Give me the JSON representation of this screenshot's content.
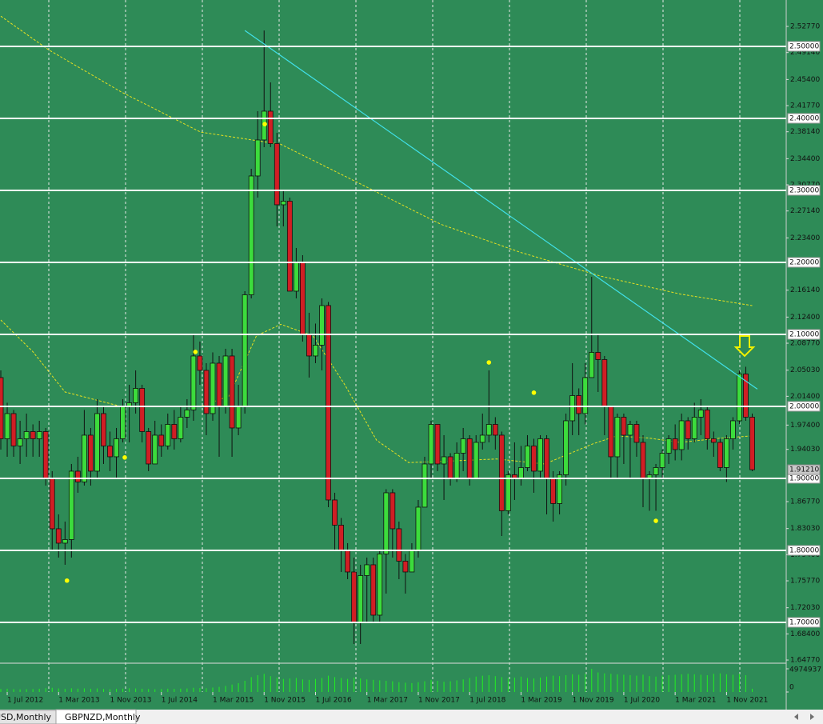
{
  "chart_data": {
    "type": "candlestick",
    "colors": {
      "background": "#2e8b57",
      "bull": "#3cdc3c",
      "bear": "#d01e24",
      "wick": "#101010",
      "level": "#ffffff",
      "trendline": "#40e0e8",
      "ma": "#e8e020",
      "marker": "#ffff00",
      "volume": "#22ee22"
    },
    "categories": [
      null,
      "1 Jul 2012",
      null,
      null,
      null,
      null,
      null,
      null,
      null,
      "1 Mar 2013",
      null,
      null,
      null,
      null,
      null,
      null,
      null,
      "1 Nov 2013",
      null,
      null,
      null,
      null,
      null,
      null,
      null,
      "1 Jul 2014",
      null,
      null,
      null,
      null,
      null,
      null,
      null,
      "1 Mar 2015",
      null,
      null,
      null,
      null,
      null,
      null,
      null,
      "1 Nov 2015",
      null,
      null,
      null,
      null,
      null,
      null,
      null,
      "1 Jul 2016",
      null,
      null,
      null,
      null,
      null,
      null,
      null,
      "1 Mar 2017",
      null,
      null,
      null,
      null,
      null,
      null,
      null,
      "1 Nov 2017",
      null,
      null,
      null,
      null,
      null,
      null,
      null,
      "1 Jul 2018",
      null,
      null,
      null,
      null,
      null,
      null,
      null,
      "1 Mar 2019",
      null,
      null,
      null,
      null,
      null,
      null,
      null,
      "1 Nov 2019",
      null,
      null,
      null,
      null,
      null,
      null,
      null,
      "1 Jul 2020",
      null,
      null,
      null,
      null,
      null,
      null,
      null,
      "1 Mar 2021",
      null,
      null,
      null,
      null,
      null,
      null,
      null,
      "1 Nov 2021",
      null,
      null,
      null,
      null
    ],
    "ohlc": [
      [
        2.04,
        2.05,
        1.94,
        1.955
      ],
      [
        1.955,
        2.005,
        1.93,
        1.99
      ],
      [
        1.99,
        1.995,
        1.93,
        1.945
      ],
      [
        1.945,
        1.98,
        1.92,
        1.955
      ],
      [
        1.955,
        1.99,
        1.93,
        1.965
      ],
      [
        1.965,
        1.975,
        1.93,
        1.955
      ],
      [
        1.955,
        1.98,
        1.93,
        1.965
      ],
      [
        1.965,
        1.97,
        1.89,
        1.9
      ],
      [
        1.9,
        1.91,
        1.8,
        1.83
      ],
      [
        1.83,
        1.85,
        1.79,
        1.81
      ],
      [
        1.81,
        1.84,
        1.78,
        1.815
      ],
      [
        1.815,
        1.92,
        1.79,
        1.91
      ],
      [
        1.91,
        1.93,
        1.88,
        1.895
      ],
      [
        1.895,
        1.995,
        1.89,
        1.96
      ],
      [
        1.96,
        1.97,
        1.89,
        1.91
      ],
      [
        1.91,
        2.01,
        1.9,
        1.99
      ],
      [
        1.99,
        2.0,
        1.92,
        1.945
      ],
      [
        1.945,
        1.965,
        1.91,
        1.93
      ],
      [
        1.93,
        1.97,
        1.9,
        1.955
      ],
      [
        1.955,
        2.01,
        1.95,
        2.0
      ],
      [
        2.0,
        2.03,
        1.95,
        2.005
      ],
      [
        2.005,
        2.05,
        1.99,
        2.025
      ],
      [
        2.025,
        2.03,
        1.95,
        1.965
      ],
      [
        1.965,
        1.97,
        1.91,
        1.92
      ],
      [
        1.92,
        1.98,
        1.92,
        1.96
      ],
      [
        1.96,
        1.975,
        1.93,
        1.945
      ],
      [
        1.945,
        1.99,
        1.94,
        1.975
      ],
      [
        1.975,
        1.995,
        1.94,
        1.955
      ],
      [
        1.955,
        2.0,
        1.95,
        1.985
      ],
      [
        1.985,
        2.01,
        1.97,
        1.995
      ],
      [
        1.995,
        2.1,
        1.98,
        2.07
      ],
      [
        2.07,
        2.09,
        2.03,
        2.05
      ],
      [
        2.05,
        2.06,
        1.96,
        1.99
      ],
      [
        1.99,
        2.075,
        1.98,
        2.06
      ],
      [
        2.06,
        2.07,
        1.93,
        2.0
      ],
      [
        2.0,
        2.08,
        1.99,
        2.07
      ],
      [
        2.07,
        2.08,
        1.93,
        1.97
      ],
      [
        1.97,
        2.03,
        1.96,
        2.0
      ],
      [
        2.0,
        2.16,
        1.99,
        2.155
      ],
      [
        2.155,
        2.33,
        2.15,
        2.32
      ],
      [
        2.32,
        2.41,
        2.29,
        2.37
      ],
      [
        2.37,
        2.522,
        2.36,
        2.41
      ],
      [
        2.41,
        2.45,
        2.36,
        2.365
      ],
      [
        2.365,
        2.38,
        2.25,
        2.28
      ],
      [
        2.28,
        2.3,
        2.25,
        2.285
      ],
      [
        2.285,
        2.29,
        2.16,
        2.16
      ],
      [
        2.16,
        2.22,
        2.15,
        2.2
      ],
      [
        2.2,
        2.21,
        2.09,
        2.1
      ],
      [
        2.1,
        2.13,
        2.04,
        2.07
      ],
      [
        2.07,
        2.115,
        2.06,
        2.085
      ],
      [
        2.085,
        2.15,
        2.05,
        2.14
      ],
      [
        2.14,
        2.145,
        1.86,
        1.87
      ],
      [
        1.87,
        1.88,
        1.8,
        1.835
      ],
      [
        1.835,
        1.845,
        1.77,
        1.8
      ],
      [
        1.8,
        1.81,
        1.76,
        1.77
      ],
      [
        1.77,
        1.79,
        1.67,
        1.7
      ],
      [
        1.7,
        1.78,
        1.67,
        1.765
      ],
      [
        1.765,
        1.79,
        1.7,
        1.78
      ],
      [
        1.78,
        1.79,
        1.7,
        1.71
      ],
      [
        1.71,
        1.8,
        1.7,
        1.795
      ],
      [
        1.795,
        1.885,
        1.74,
        1.88
      ],
      [
        1.88,
        1.885,
        1.79,
        1.83
      ],
      [
        1.83,
        1.84,
        1.76,
        1.785
      ],
      [
        1.785,
        1.795,
        1.74,
        1.77
      ],
      [
        1.77,
        1.81,
        1.77,
        1.8
      ],
      [
        1.8,
        1.87,
        1.79,
        1.86
      ],
      [
        1.86,
        1.93,
        1.86,
        1.92
      ],
      [
        1.92,
        1.98,
        1.9,
        1.975
      ],
      [
        1.975,
        1.975,
        1.91,
        1.92
      ],
      [
        1.92,
        1.96,
        1.87,
        1.93
      ],
      [
        1.93,
        1.935,
        1.89,
        1.9
      ],
      [
        1.9,
        1.95,
        1.895,
        1.935
      ],
      [
        1.935,
        1.97,
        1.91,
        1.955
      ],
      [
        1.955,
        1.96,
        1.89,
        1.9
      ],
      [
        1.9,
        1.96,
        1.9,
        1.95
      ],
      [
        1.95,
        1.99,
        1.94,
        1.96
      ],
      [
        1.96,
        2.05,
        1.95,
        1.975
      ],
      [
        1.975,
        1.985,
        1.94,
        1.96
      ],
      [
        1.96,
        1.965,
        1.82,
        1.855
      ],
      [
        1.855,
        1.91,
        1.85,
        1.905
      ],
      [
        1.905,
        1.95,
        1.87,
        1.9
      ],
      [
        1.9,
        1.945,
        1.89,
        1.915
      ],
      [
        1.915,
        1.96,
        1.91,
        1.945
      ],
      [
        1.945,
        1.955,
        1.88,
        1.91
      ],
      [
        1.91,
        1.96,
        1.9,
        1.955
      ],
      [
        1.955,
        1.96,
        1.85,
        1.9
      ],
      [
        1.9,
        1.91,
        1.84,
        1.865
      ],
      [
        1.865,
        1.91,
        1.85,
        1.905
      ],
      [
        1.905,
        1.99,
        1.89,
        1.98
      ],
      [
        1.98,
        2.06,
        1.96,
        2.015
      ],
      [
        2.015,
        2.025,
        1.96,
        1.99
      ],
      [
        1.99,
        2.06,
        1.975,
        2.04
      ],
      [
        2.04,
        2.18,
        2.04,
        2.075
      ],
      [
        2.075,
        2.1,
        2.02,
        2.065
      ],
      [
        2.065,
        2.07,
        1.96,
        2.0
      ],
      [
        2.0,
        2.0,
        1.9,
        1.93
      ],
      [
        1.93,
        1.99,
        1.9,
        1.985
      ],
      [
        1.985,
        1.99,
        1.92,
        1.96
      ],
      [
        1.96,
        1.98,
        1.9,
        1.975
      ],
      [
        1.975,
        1.98,
        1.93,
        1.95
      ],
      [
        1.95,
        1.96,
        1.86,
        1.9
      ],
      [
        1.9,
        1.91,
        1.855,
        1.905
      ],
      [
        1.905,
        1.92,
        1.855,
        1.915
      ],
      [
        1.915,
        1.94,
        1.9,
        1.935
      ],
      [
        1.935,
        1.96,
        1.92,
        1.955
      ],
      [
        1.955,
        1.975,
        1.925,
        1.94
      ],
      [
        1.94,
        1.99,
        1.925,
        1.98
      ],
      [
        1.98,
        1.985,
        1.94,
        1.955
      ],
      [
        1.955,
        2.005,
        1.95,
        1.985
      ],
      [
        1.985,
        2.01,
        1.96,
        1.995
      ],
      [
        1.995,
        2.0,
        1.94,
        1.955
      ],
      [
        1.955,
        1.965,
        1.93,
        1.95
      ],
      [
        1.95,
        1.955,
        1.91,
        1.915
      ],
      [
        1.915,
        1.96,
        1.895,
        1.955
      ],
      [
        1.955,
        1.985,
        1.94,
        1.98
      ],
      [
        1.98,
        2.05,
        1.975,
        2.045
      ],
      [
        2.045,
        2.055,
        1.98,
        1.985
      ],
      [
        1.985,
        1.99,
        1.91,
        1.912
      ]
    ],
    "volume": [
      650000,
      700000,
      620000,
      580000,
      600000,
      640000,
      700000,
      820000,
      900000,
      760000,
      680000,
      800000,
      720000,
      780000,
      700000,
      760000,
      650000,
      600000,
      680000,
      720000,
      800000,
      760000,
      700000,
      640000,
      600000,
      650000,
      700000,
      680000,
      720000,
      760000,
      900000,
      850000,
      800000,
      950000,
      1100000,
      1300000,
      1600000,
      1900000,
      2400000,
      3200000,
      3600000,
      3900000,
      3400000,
      3100000,
      2800000,
      2900000,
      3000000,
      2700000,
      2600000,
      2800000,
      3000000,
      3500000,
      3200000,
      3000000,
      2800000,
      3100000,
      2900000,
      2700000,
      2600000,
      2500000,
      2400000,
      2300000,
      2100000,
      2000000,
      1900000,
      2100000,
      2300000,
      2600000,
      2400000,
      2200000,
      2300000,
      2500000,
      2700000,
      3000000,
      3300000,
      3500000,
      3600000,
      3400000,
      3200000,
      3000000,
      3100000,
      3300000,
      3000000,
      2900000,
      3100000,
      3300000,
      3500000,
      3400000,
      3600000,
      3800000,
      3700000,
      3900000,
      4974937,
      4200000,
      4000000,
      3900000,
      3800000,
      3700000,
      3600000,
      3500000,
      3700000,
      3400000,
      3300000,
      3500000,
      3600000,
      3700000,
      3800000,
      3900000,
      3800000,
      3700000,
      3600000,
      3900000,
      4000000,
      3800000,
      3700000,
      3900000,
      3600000,
      700000
    ],
    "ylim": [
      1.6444,
      2.5644
    ],
    "yticks": [
      {
        "value": 2.5277,
        "label": "2.52770"
      },
      {
        "value": 2.4914,
        "label": "2.49140"
      },
      {
        "value": 2.454,
        "label": "2.45400"
      },
      {
        "value": 2.4177,
        "label": "2.41770"
      },
      {
        "value": 2.3814,
        "label": "2.38140"
      },
      {
        "value": 2.344,
        "label": "2.34400"
      },
      {
        "value": 2.3077,
        "label": "2.30770"
      },
      {
        "value": 2.2714,
        "label": "2.27140"
      },
      {
        "value": 2.234,
        "label": "2.23400"
      },
      {
        "value": 2.1614,
        "label": "2.16140"
      },
      {
        "value": 2.124,
        "label": "2.12400"
      },
      {
        "value": 2.0877,
        "label": "2.08770"
      },
      {
        "value": 2.0503,
        "label": "2.05030"
      },
      {
        "value": 2.014,
        "label": "2.01400"
      },
      {
        "value": 1.974,
        "label": "1.97400"
      },
      {
        "value": 1.9403,
        "label": "1.94030"
      },
      {
        "value": 1.8677,
        "label": "1.86770"
      },
      {
        "value": 1.8303,
        "label": "1.83030"
      },
      {
        "value": 1.794,
        "label": "1.79400"
      },
      {
        "value": 1.7577,
        "label": "1.75770"
      },
      {
        "value": 1.7203,
        "label": "1.72030"
      },
      {
        "value": 1.684,
        "label": "1.68400"
      },
      {
        "value": 1.6477,
        "label": "1.64770"
      }
    ],
    "levels": [
      {
        "value": 2.5,
        "label": "2.50000"
      },
      {
        "value": 2.4,
        "label": "2.40000"
      },
      {
        "value": 2.3,
        "label": "2.30000"
      },
      {
        "value": 2.2,
        "label": "2.20000"
      },
      {
        "value": 2.1,
        "label": "2.10000"
      },
      {
        "value": 2.0,
        "label": "2.00000"
      },
      {
        "value": 1.9,
        "label": "1.90000"
      },
      {
        "value": 1.8,
        "label": "1.80000"
      },
      {
        "value": 1.7,
        "label": "1.70000"
      }
    ],
    "current_price": {
      "value": 1.9121,
      "label": "1.91210"
    },
    "vlim": [
      0,
      4974937
    ],
    "vticks": [
      4974937,
      0
    ],
    "trendline": {
      "x": [
        38,
        117.8
      ],
      "values": [
        2.522,
        2.024
      ]
    },
    "moving_averages": [
      {
        "x": [
          0,
          7.5,
          18.7,
          31.1,
          43.6,
          56,
          68.5,
          80.9,
          93.4,
          105.8,
          117
        ],
        "values": [
          2.542,
          2.495,
          2.437,
          2.381,
          2.364,
          2.309,
          2.253,
          2.214,
          2.181,
          2.156,
          2.14
        ]
      },
      {
        "x": [
          0,
          5,
          10,
          18.7,
          31.1,
          35.5,
          39.8,
          43.6,
          48.6,
          53.5,
          58.5,
          63.5,
          69.7,
          77.2,
          84.7,
          92.2,
          95.9,
          100.9,
          105.8,
          112.1,
          117
        ],
        "values": [
          2.12,
          2.076,
          2.02,
          2.0,
          2.0,
          2.014,
          2.098,
          2.114,
          2.098,
          2.031,
          1.953,
          1.922,
          1.924,
          1.927,
          1.92,
          1.948,
          1.959,
          1.956,
          1.95,
          1.956,
          1.959
        ]
      }
    ],
    "markers": {
      "x": [
        10.3,
        19.3,
        30.3,
        41.1,
        76,
        83,
        102
      ],
      "values": [
        1.758,
        1.929,
        2.0756,
        2.392,
        2.061,
        2.019,
        1.841
      ]
    },
    "tabs": [
      "USD,Monthly",
      "GBPNZD,Monthly"
    ]
  }
}
